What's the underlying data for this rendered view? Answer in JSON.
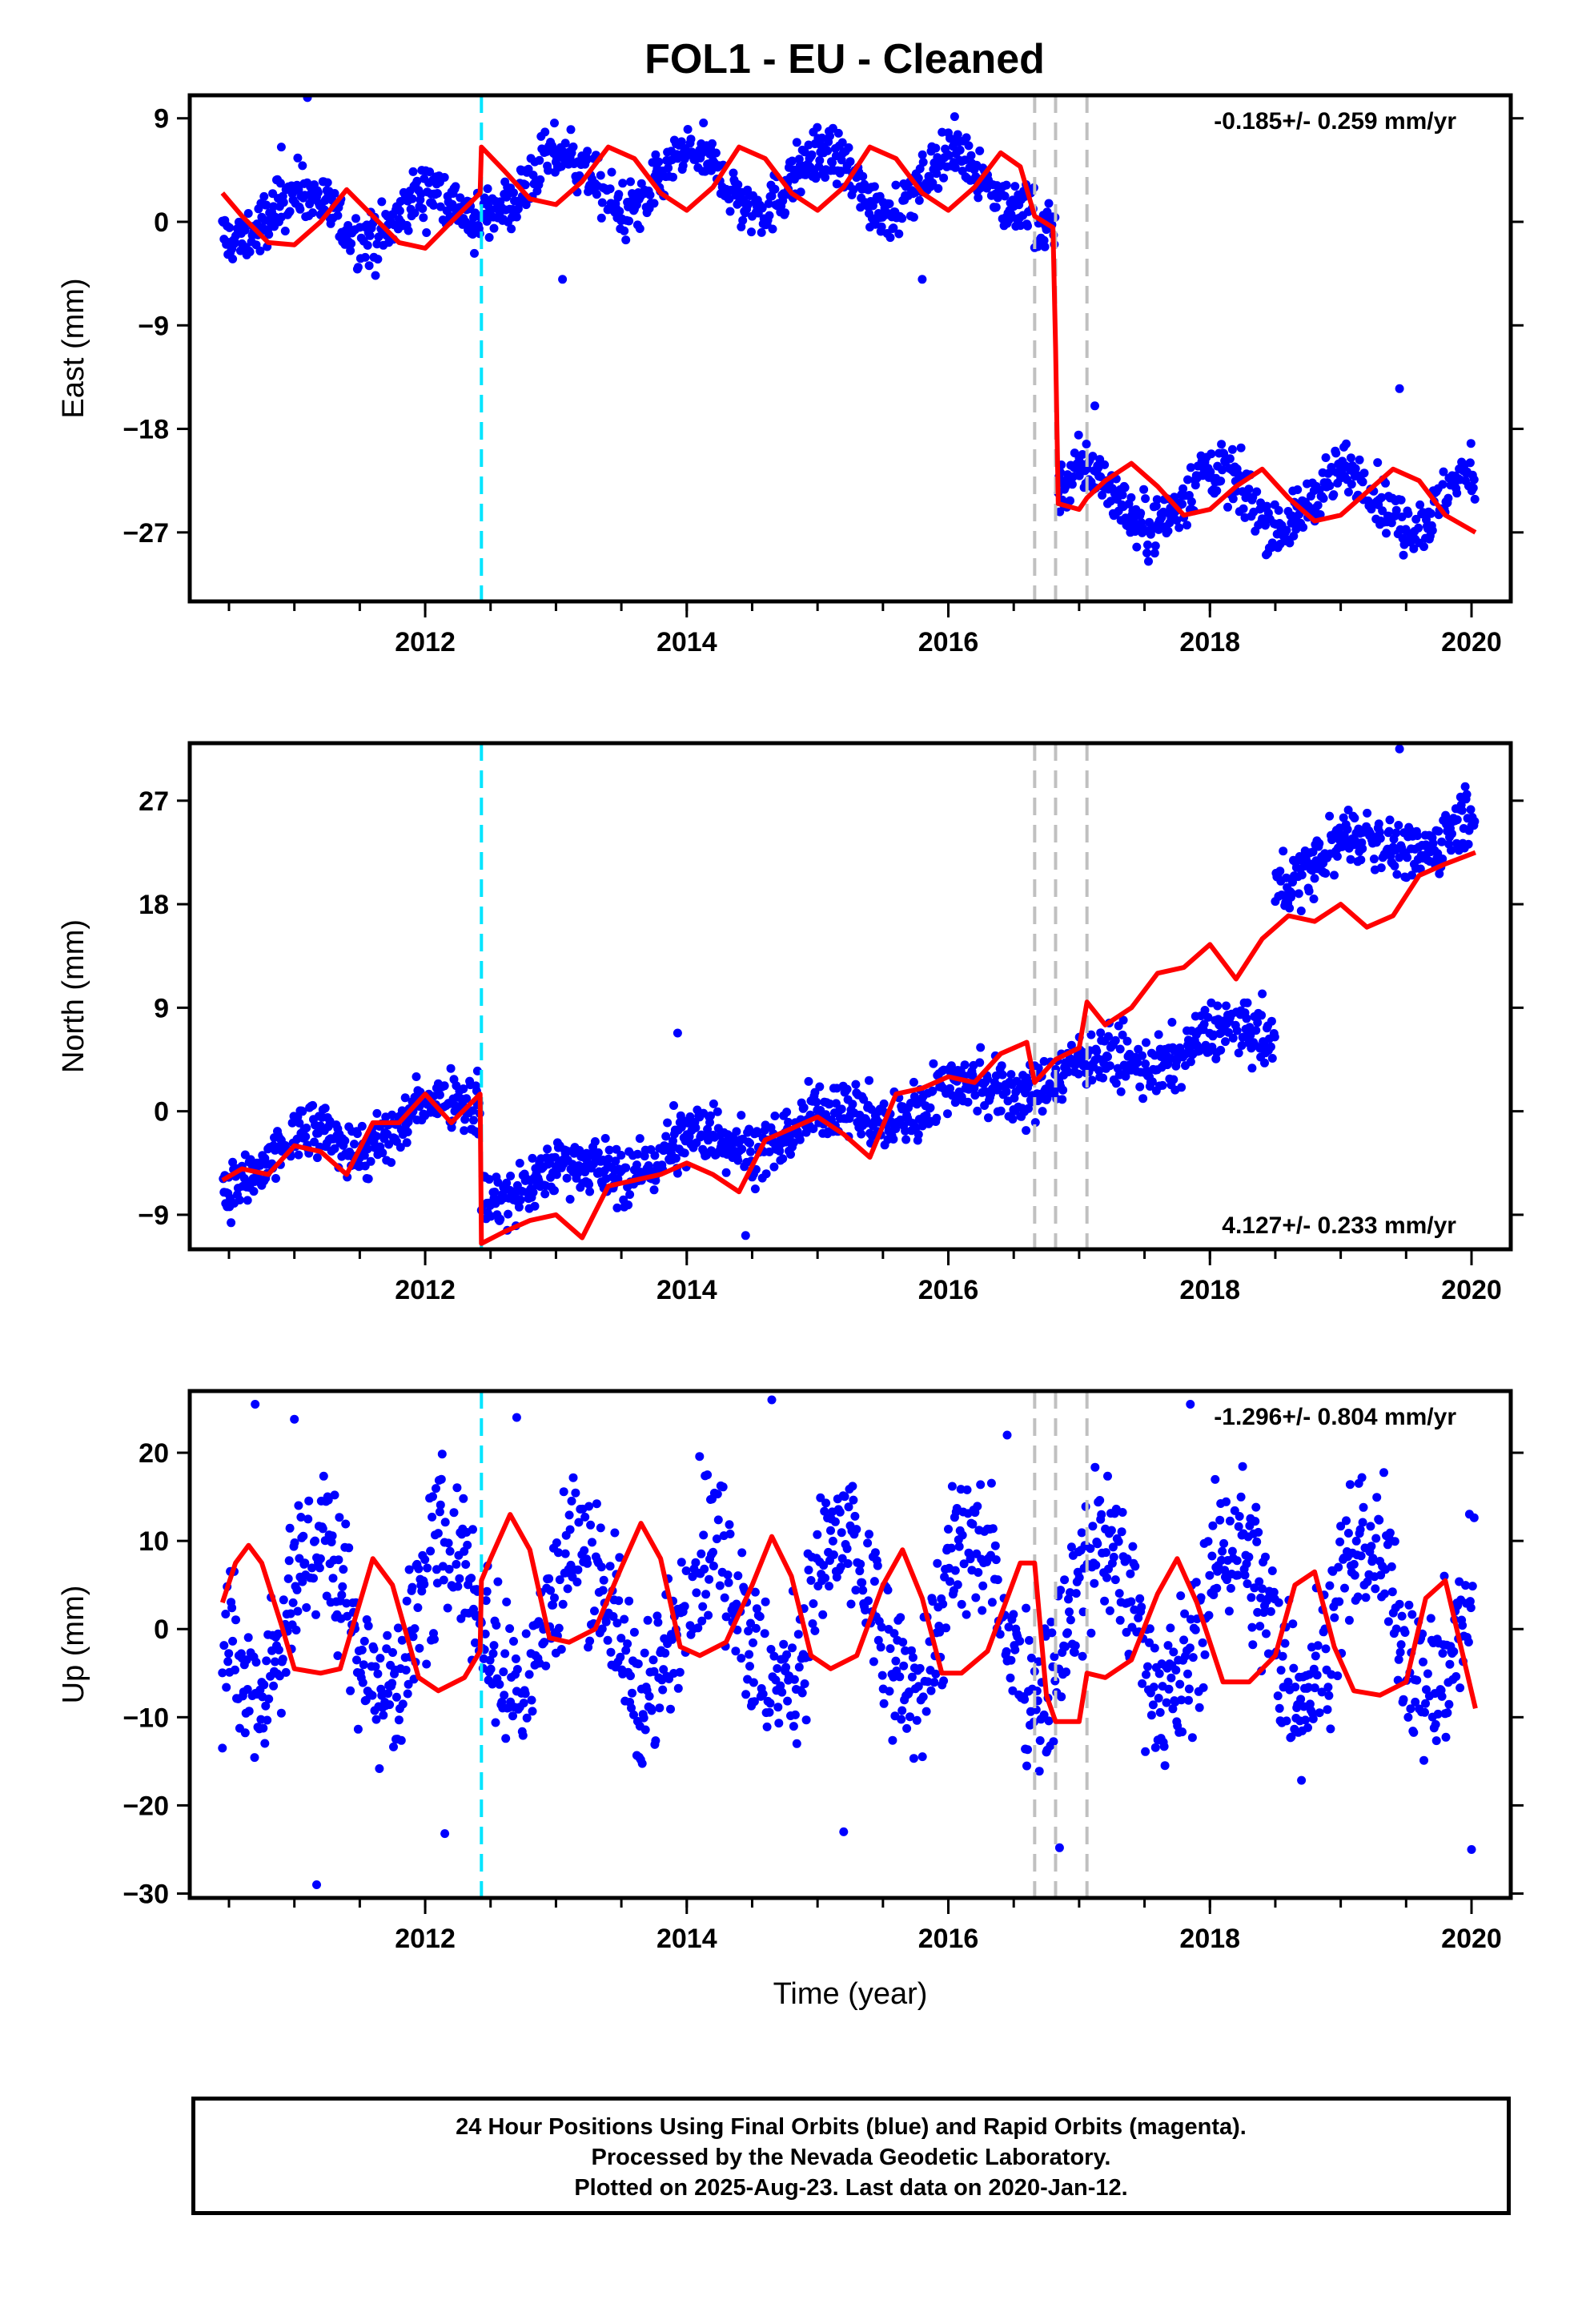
{
  "title": "FOL1  - EU - Cleaned",
  "footer": [
    "24 Hour Positions Using Final Orbits (blue) and Rapid Orbits (magenta).",
    "Processed by the Nevada Geodetic Laboratory.",
    "Plotted on 2025-Aug-23. Last data on 2020-Jan-12."
  ],
  "colors": {
    "data": "#0000ff",
    "model": "#ff0000",
    "event_cyan": "#00e5ff",
    "event_gray": "#c0c0c0"
  },
  "chart_data": [
    {
      "type": "scatter",
      "name": "east",
      "ylabel": "East (mm)",
      "xlabel": "",
      "rate": "-0.185+/- 0.259 mm/yr",
      "rate_position": "top-right",
      "xlim": [
        2010.2,
        2020.3
      ],
      "ylim": [
        -33,
        11
      ],
      "yticks": [
        9,
        0,
        -9,
        -18,
        -27
      ],
      "xticks": [
        2012,
        2014,
        2016,
        2018,
        2020
      ],
      "events_cyan": [
        2012.43
      ],
      "events_gray": [
        2016.66,
        2016.82,
        2017.06
      ],
      "series": [
        {
          "kind": "model",
          "x": [
            2010.45,
            2010.6,
            2010.8,
            2011.0,
            2011.2,
            2011.4,
            2011.6,
            2011.8,
            2012.0,
            2012.2,
            2012.42,
            2012.43,
            2012.6,
            2012.8,
            2013.0,
            2013.2,
            2013.4,
            2013.6,
            2013.8,
            2014.0,
            2014.2,
            2014.4,
            2014.6,
            2014.8,
            2015.0,
            2015.2,
            2015.4,
            2015.6,
            2015.8,
            2016.0,
            2016.2,
            2016.4,
            2016.55,
            2016.66,
            2016.8,
            2016.82,
            2016.84,
            2017.0,
            2017.06,
            2017.2,
            2017.4,
            2017.6,
            2017.8,
            2018.0,
            2018.2,
            2018.4,
            2018.6,
            2018.8,
            2019.0,
            2019.2,
            2019.4,
            2019.6,
            2019.8,
            2020.03
          ],
          "y": [
            2.5,
            0.5,
            -1.8,
            -2.0,
            0.0,
            2.8,
            0.5,
            -1.8,
            -2.3,
            0.0,
            2.5,
            6.5,
            4.5,
            2.0,
            1.5,
            3.5,
            6.5,
            5.5,
            2.5,
            1.0,
            3.0,
            6.5,
            5.5,
            2.5,
            1.0,
            3.0,
            6.5,
            5.5,
            2.5,
            1.0,
            3.0,
            6.0,
            4.8,
            0.5,
            -0.5,
            -11.0,
            -24.5,
            -25.0,
            -24.0,
            -22.5,
            -21.0,
            -23.0,
            -25.5,
            -25.0,
            -23.0,
            -21.5,
            -24.0,
            -26.0,
            -25.5,
            -23.5,
            -21.5,
            -22.5,
            -25.5,
            -27.0
          ]
        }
      ],
      "segments": [
        {
          "x0": 2010.45,
          "x1": 2012.43,
          "base": 0.5,
          "amp": 2.2,
          "phase": 1.2
        },
        {
          "x0": 2012.43,
          "x1": 2016.66,
          "base": 3.5,
          "amp": 2.5,
          "phase": 1.3
        },
        {
          "x0": 2016.66,
          "x1": 2016.82,
          "base": 0.0,
          "amp": 0.8,
          "phase": 1.3
        },
        {
          "x0": 2016.84,
          "x1": 2020.03,
          "base": -24.0,
          "amp": 2.5,
          "phase": 1.3
        }
      ],
      "noise": 1.2,
      "outliers": [
        [
          2011.1,
          10.8
        ],
        [
          2010.9,
          6.5
        ],
        [
          2015.8,
          -5.0
        ],
        [
          2017.12,
          -16.0
        ],
        [
          2019.45,
          -14.5
        ],
        [
          2013.05,
          -5.0
        ],
        [
          2017.0,
          -20.5
        ]
      ]
    },
    {
      "type": "scatter",
      "name": "north",
      "ylabel": "North (mm)",
      "xlabel": "",
      "rate": "4.127+/- 0.233 mm/yr",
      "rate_position": "bottom-right",
      "xlim": [
        2010.2,
        2020.3
      ],
      "ylim": [
        -12,
        32
      ],
      "yticks": [
        27,
        18,
        9,
        0,
        -9
      ],
      "xticks": [
        2012,
        2014,
        2016,
        2018,
        2020
      ],
      "events_cyan": [
        2012.43
      ],
      "events_gray": [
        2016.66,
        2016.82,
        2017.06
      ],
      "series": [
        {
          "kind": "model",
          "x": [
            2010.45,
            2010.6,
            2010.8,
            2011.0,
            2011.2,
            2011.4,
            2011.6,
            2011.8,
            2012.0,
            2012.2,
            2012.42,
            2012.43,
            2012.6,
            2012.8,
            2013.0,
            2013.2,
            2013.4,
            2013.6,
            2013.8,
            2014.0,
            2014.2,
            2014.4,
            2014.6,
            2014.8,
            2015.0,
            2015.2,
            2015.4,
            2015.6,
            2015.8,
            2016.0,
            2016.2,
            2016.4,
            2016.6,
            2016.66,
            2016.82,
            2017.0,
            2017.06,
            2017.2,
            2017.4,
            2017.6,
            2017.8,
            2018.0,
            2018.2,
            2018.4,
            2018.6,
            2018.8,
            2019.0,
            2019.2,
            2019.4,
            2019.6,
            2019.8,
            2020.03
          ],
          "y": [
            -6.0,
            -5.0,
            -5.5,
            -3.0,
            -3.5,
            -5.5,
            -1.0,
            -1.0,
            1.5,
            -1.0,
            1.5,
            -11.5,
            -10.5,
            -9.5,
            -9.0,
            -11.0,
            -6.5,
            -6.0,
            -5.5,
            -4.5,
            -5.5,
            -7.0,
            -2.5,
            -1.5,
            -0.5,
            -2.0,
            -4.0,
            1.5,
            2.0,
            3.0,
            2.5,
            5.0,
            6.0,
            2.5,
            4.5,
            5.5,
            9.5,
            7.5,
            9.0,
            12.0,
            12.5,
            14.5,
            11.5,
            15.0,
            17.0,
            16.5,
            18.0,
            16.0,
            17.0,
            20.5,
            21.5,
            22.5
          ]
        }
      ],
      "clusters": [
        {
          "x0": 2010.45,
          "x1": 2012.43,
          "y0": -5.5,
          "y1": 1.0,
          "amp": 1.5
        },
        {
          "x0": 2012.43,
          "x1": 2018.5,
          "y0": -7.0,
          "y1": 7.0,
          "amp": 1.2
        },
        {
          "x0": 2018.5,
          "x1": 2020.03,
          "y0": 21.0,
          "y1": 25.0,
          "amp": 1.5
        }
      ],
      "noise": 1.3,
      "outliers": [
        [
          2013.93,
          6.8
        ],
        [
          2013.9,
          0.5
        ],
        [
          2014.45,
          -10.8
        ],
        [
          2019.45,
          31.5
        ],
        [
          2012.4,
          3.5
        ]
      ]
    },
    {
      "type": "scatter",
      "name": "up",
      "ylabel": "Up (mm)",
      "xlabel": "Time (year)",
      "rate": "-1.296+/- 0.804 mm/yr",
      "rate_position": "top-right",
      "xlim": [
        2010.2,
        2020.3
      ],
      "ylim": [
        -30.5,
        27
      ],
      "yticks": [
        20,
        10,
        0,
        -10,
        -20,
        -30
      ],
      "xticks": [
        2012,
        2014,
        2016,
        2018,
        2020
      ],
      "events_cyan": [
        2012.43
      ],
      "events_gray": [
        2016.66,
        2016.82,
        2017.06
      ],
      "series": [
        {
          "kind": "model",
          "x": [
            2010.45,
            2010.55,
            2010.65,
            2010.75,
            2010.9,
            2011.0,
            2011.2,
            2011.35,
            2011.5,
            2011.6,
            2011.75,
            2011.95,
            2012.1,
            2012.3,
            2012.42,
            2012.43,
            2012.5,
            2012.65,
            2012.8,
            2012.95,
            2013.1,
            2013.3,
            2013.5,
            2013.65,
            2013.8,
            2013.95,
            2014.1,
            2014.3,
            2014.5,
            2014.65,
            2014.8,
            2014.95,
            2015.1,
            2015.3,
            2015.5,
            2015.65,
            2015.8,
            2015.95,
            2016.1,
            2016.3,
            2016.55,
            2016.66,
            2016.75,
            2016.82,
            2017.0,
            2017.06,
            2017.2,
            2017.4,
            2017.6,
            2017.75,
            2017.9,
            2018.1,
            2018.3,
            2018.5,
            2018.65,
            2018.8,
            2018.95,
            2019.1,
            2019.3,
            2019.5,
            2019.65,
            2019.8,
            2020.03
          ],
          "y": [
            3.0,
            7.5,
            9.5,
            7.5,
            0.5,
            -4.5,
            -5.0,
            -4.5,
            3.0,
            8.0,
            5.0,
            -5.5,
            -7.0,
            -5.5,
            -2.5,
            5.5,
            8.0,
            13.0,
            9.0,
            -1.0,
            -1.5,
            0.0,
            7.0,
            12.0,
            8.0,
            -2.0,
            -3.0,
            -1.5,
            5.0,
            10.5,
            6.0,
            -3.0,
            -4.5,
            -3.0,
            5.0,
            9.0,
            3.5,
            -5.0,
            -5.0,
            -2.5,
            7.5,
            7.5,
            -7.5,
            -10.5,
            -10.5,
            -5.0,
            -5.5,
            -3.5,
            4.0,
            8.0,
            3.0,
            -6.0,
            -6.0,
            -3.0,
            5.0,
            6.5,
            -2.0,
            -7.0,
            -7.5,
            -6.0,
            3.5,
            5.5,
            -9.0
          ]
        }
      ],
      "segments": [
        {
          "x0": 2010.45,
          "x1": 2020.03,
          "base": 1.5,
          "amp": 8.5,
          "phase": 0.4
        }
      ],
      "noise": 4.5,
      "outliers": [
        [
          2010.7,
          25.5
        ],
        [
          2011.17,
          -29.0
        ],
        [
          2012.15,
          -23.2
        ],
        [
          2015.2,
          -23.0
        ],
        [
          2016.85,
          -24.8
        ],
        [
          2017.85,
          25.5
        ],
        [
          2014.65,
          26.0
        ],
        [
          2010.45,
          -13.5
        ],
        [
          2020.0,
          -25.0
        ],
        [
          2011.0,
          23.8
        ],
        [
          2012.7,
          24.0
        ],
        [
          2016.45,
          22.0
        ]
      ]
    }
  ]
}
